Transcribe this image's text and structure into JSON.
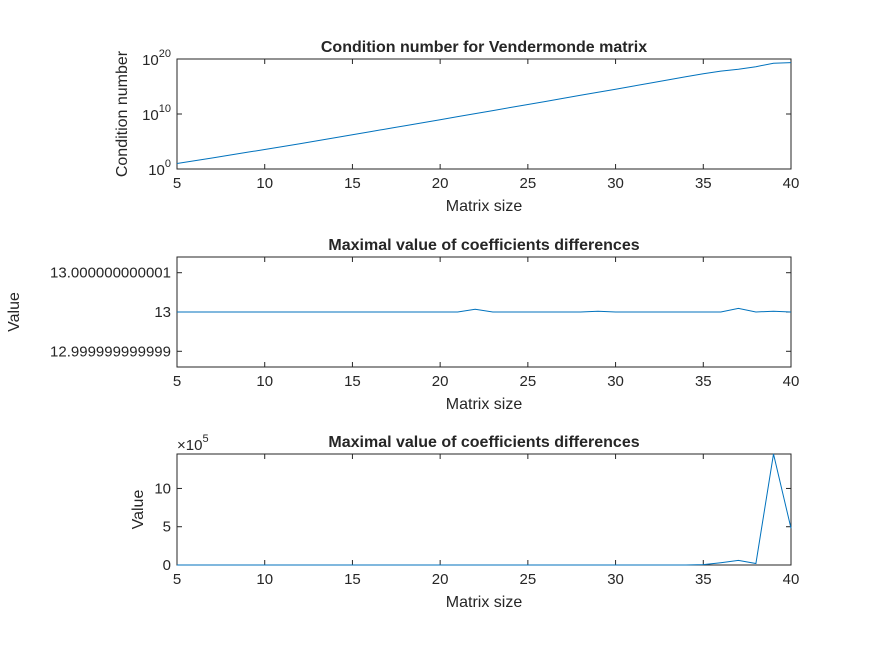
{
  "colors": {
    "line": "#0072BD",
    "axis": "#262626",
    "background": "#ffffff"
  },
  "chart_data": [
    {
      "type": "line",
      "title": "Condition number for Vendermonde matrix",
      "xlabel": "Matrix size",
      "ylabel": "Condition number",
      "yscale": "log",
      "xlim": [
        5,
        40
      ],
      "ylim": [
        1,
        1e+20
      ],
      "xticks": [
        5,
        10,
        15,
        20,
        25,
        30,
        35,
        40
      ],
      "xtick_labels": [
        "5",
        "10",
        "15",
        "20",
        "25",
        "30",
        "35",
        "40"
      ],
      "yticks": [
        1,
        10000000000.0,
        1e+20
      ],
      "ytick_labels": [
        {
          "base": "10",
          "exp": "0"
        },
        {
          "base": "10",
          "exp": "10"
        },
        {
          "base": "10",
          "exp": "20"
        }
      ],
      "x": [
        5,
        6,
        7,
        8,
        9,
        10,
        11,
        12,
        13,
        14,
        15,
        16,
        17,
        18,
        19,
        20,
        21,
        22,
        23,
        24,
        25,
        26,
        27,
        28,
        29,
        30,
        31,
        32,
        33,
        34,
        35,
        36,
        37,
        38,
        39,
        40
      ],
      "y": [
        10.0,
        32.0,
        100.0,
        330.0,
        1100.0,
        3500.0,
        12000.0,
        40000.0,
        140000.0,
        480000.0,
        1700000.0,
        5900000.0,
        21000000.0,
        74000000.0,
        260000000.0,
        930000000.0,
        3300000000.0,
        12000000000.0,
        42000000000.0,
        150000000000.0,
        530000000000.0,
        1900000000000.0,
        6900000000000.0,
        25000000000000.0,
        89000000000000.0,
        320000000000000.0,
        1200000000000000.0,
        4300000000000000.0,
        1.6e+16,
        5.7e+16,
        2.1e+17,
        6.3e+17,
        1.4e+18,
        4e+18,
        1.7e+19,
        2.2e+19
      ]
    },
    {
      "type": "line",
      "title": "Maximal value of coefficients differences",
      "xlabel": "Matrix size",
      "ylabel": "Value",
      "xlim": [
        5,
        40
      ],
      "ylim": [
        12.9999999999986,
        13.0000000000014
      ],
      "xticks": [
        5,
        10,
        15,
        20,
        25,
        30,
        35,
        40
      ],
      "xtick_labels": [
        "5",
        "10",
        "15",
        "20",
        "25",
        "30",
        "35",
        "40"
      ],
      "yticks": [
        12.999999999999,
        13,
        13.000000000001
      ],
      "ytick_labels": [
        "12.999999999999",
        "13",
        "13.000000000001"
      ],
      "x": [
        5,
        6,
        7,
        8,
        9,
        10,
        11,
        12,
        13,
        14,
        15,
        16,
        17,
        18,
        19,
        20,
        21,
        22,
        23,
        24,
        25,
        26,
        27,
        28,
        29,
        30,
        31,
        32,
        33,
        34,
        35,
        36,
        37,
        38,
        39,
        40
      ],
      "y": [
        13,
        13,
        13,
        13,
        13,
        13,
        13,
        13,
        13,
        13,
        13,
        13,
        13,
        13,
        13,
        13,
        13,
        13.00000000000007,
        13,
        13,
        13,
        13,
        13,
        13,
        13.00000000000002,
        13,
        13,
        13,
        13,
        13,
        13,
        13,
        13.00000000000009,
        13,
        13.00000000000002,
        13
      ]
    },
    {
      "type": "line",
      "title": "Maximal value of coefficients differences",
      "xlabel": "Matrix size",
      "ylabel": "Value",
      "xlim": [
        5,
        40
      ],
      "ylim": [
        0,
        1450000
      ],
      "y_multiplier": {
        "base": "×10",
        "exp": "5"
      },
      "xticks": [
        5,
        10,
        15,
        20,
        25,
        30,
        35,
        40
      ],
      "xtick_labels": [
        "5",
        "10",
        "15",
        "20",
        "25",
        "30",
        "35",
        "40"
      ],
      "yticks": [
        0,
        500000,
        1000000
      ],
      "ytick_labels": [
        "0",
        "5",
        "10"
      ],
      "x": [
        5,
        6,
        7,
        8,
        9,
        10,
        11,
        12,
        13,
        14,
        15,
        16,
        17,
        18,
        19,
        20,
        21,
        22,
        23,
        24,
        25,
        26,
        27,
        28,
        29,
        30,
        31,
        32,
        33,
        34,
        35,
        36,
        37,
        38,
        39,
        40
      ],
      "y": [
        0,
        0,
        0,
        0,
        0,
        0,
        0,
        0,
        0,
        0,
        0,
        0,
        0,
        0,
        0,
        0,
        0,
        0,
        0,
        0,
        0,
        0,
        0,
        0,
        0,
        0,
        0,
        0,
        0,
        0,
        5000,
        30000,
        60000,
        20000,
        1450000,
        480000
      ]
    }
  ]
}
